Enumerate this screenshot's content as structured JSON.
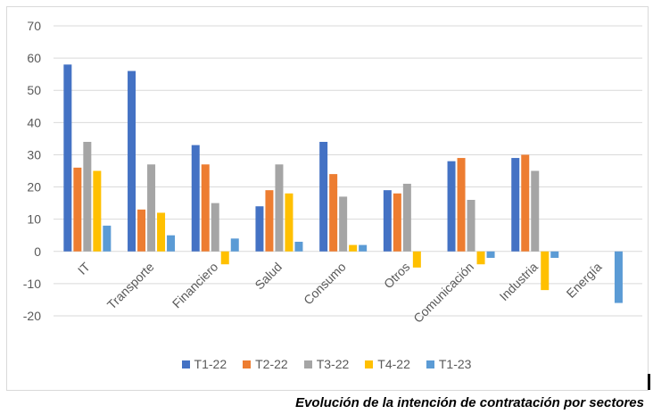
{
  "chart_data": {
    "type": "bar",
    "title": "",
    "caption": "Evolución de la intención de contratación por sectores",
    "xlabel": "",
    "ylabel": "",
    "ylim": [
      -20,
      70
    ],
    "yticks": [
      70,
      60,
      50,
      40,
      30,
      20,
      10,
      0,
      -10,
      -20
    ],
    "grid": true,
    "legend_position": "bottom",
    "categories": [
      "IT",
      "Transporte",
      "Financiero",
      "Salud",
      "Consumo",
      "Otros",
      "Comunicación",
      "Industria",
      "Energía"
    ],
    "series": [
      {
        "name": "T1-22",
        "color": "#4472c4",
        "values": [
          58,
          56,
          33,
          14,
          34,
          19,
          28,
          29,
          0
        ]
      },
      {
        "name": "T2-22",
        "color": "#ed7d31",
        "values": [
          26,
          13,
          27,
          19,
          24,
          18,
          29,
          30,
          0
        ]
      },
      {
        "name": "T3-22",
        "color": "#a5a5a5",
        "values": [
          34,
          27,
          15,
          27,
          17,
          21,
          16,
          25,
          0
        ]
      },
      {
        "name": "T4-22",
        "color": "#ffc000",
        "values": [
          25,
          12,
          -4,
          18,
          2,
          -5,
          -4,
          -12,
          0
        ]
      },
      {
        "name": "T1-23",
        "color": "#5b9bd5",
        "values": [
          8,
          5,
          4,
          3,
          2,
          0,
          -2,
          -2,
          -16
        ]
      }
    ]
  }
}
